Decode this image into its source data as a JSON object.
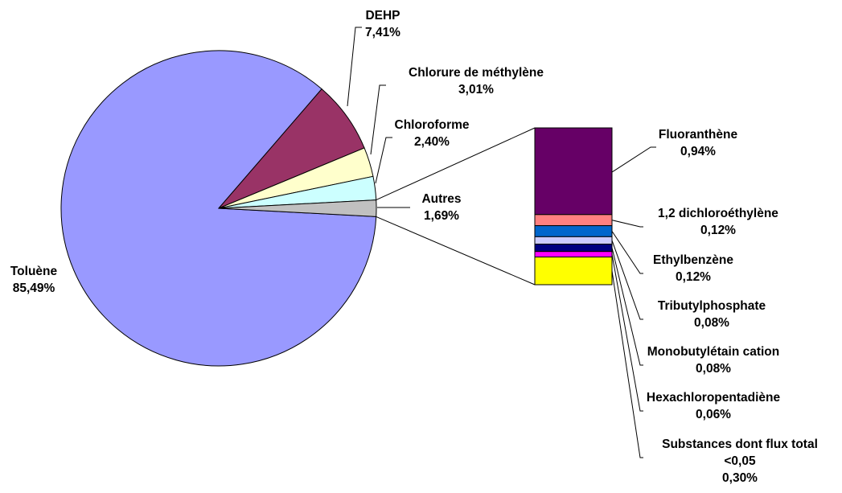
{
  "chart_data": {
    "type": "pie",
    "subtype": "bar-of-pie",
    "pie": [
      {
        "label": "Toluène",
        "value": 85.49,
        "value_label": "85,49%",
        "color": "#9999ff"
      },
      {
        "label": "DEHP",
        "value": 7.41,
        "value_label": "7,41%",
        "color": "#993366"
      },
      {
        "label": "Chlorure de méthylène",
        "value": 3.01,
        "value_label": "3,01%",
        "color": "#ffffcc"
      },
      {
        "label": "Chloroforme",
        "value": 2.4,
        "value_label": "2,40%",
        "color": "#ccffff"
      },
      {
        "label": "Autres",
        "value": 1.69,
        "value_label": "1,69%",
        "color": "#c0c0c0"
      }
    ],
    "bar": [
      {
        "label": "Fluoranthène",
        "value": 0.94,
        "value_label": "0,94%",
        "color": "#660066"
      },
      {
        "label": "1,2 dichloroéthylène",
        "value": 0.12,
        "value_label": "0,12%",
        "color": "#ff8080"
      },
      {
        "label": "Ethylbenzène",
        "value": 0.12,
        "value_label": "0,12%",
        "color": "#0066cc"
      },
      {
        "label": "Tributylphosphate",
        "value": 0.08,
        "value_label": "0,08%",
        "color": "#ccccff"
      },
      {
        "label": "Monobutylétain cation",
        "value": 0.08,
        "value_label": "0,08%",
        "color": "#000080"
      },
      {
        "label": "Hexachloropentadiène",
        "value": 0.06,
        "value_label": "0,06%",
        "color": "#ff00ff"
      },
      {
        "label": "Substances dont flux total\n<0,05",
        "value": 0.3,
        "value_label": "0,30%",
        "color": "#ffff00"
      }
    ]
  }
}
